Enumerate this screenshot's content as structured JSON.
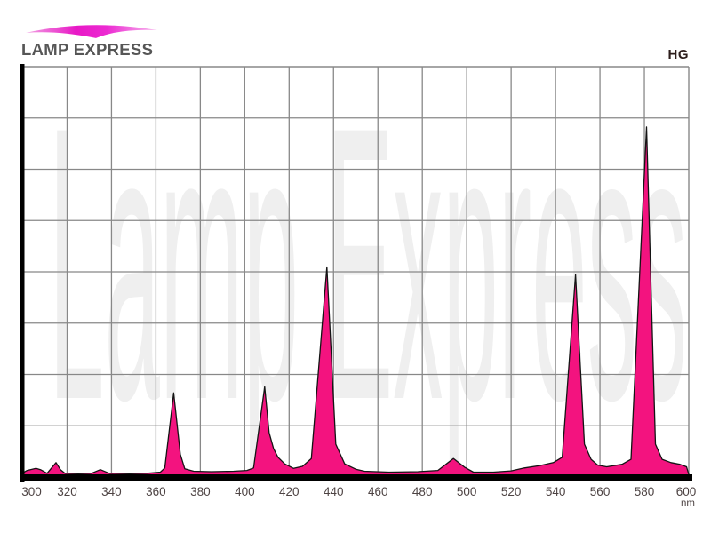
{
  "header": {
    "logo_text": "LAMP EXPRESS",
    "corner_label": "HG"
  },
  "watermark": "Lamp Express",
  "colors": {
    "background": "#FFFFFF",
    "spectrum_fill": "#F3137F",
    "spectrum_outline": "#141414",
    "grid": "#888888",
    "axis": "#000000",
    "tick_label": "#4D4343",
    "watermark": "#EFEFEF",
    "logo_text": "#565656",
    "corner_label": "#2D1E1C",
    "logo_swoosh_edge_left": "#F2A3E3",
    "logo_swoosh_mid": "#E818C6",
    "logo_swoosh_mid2": "#EC2BD2",
    "logo_swoosh_edge_right": "#F8BCEF"
  },
  "chart_data": {
    "type": "area",
    "series_label": "HG",
    "xlabel": "nm",
    "x_unit": "nm",
    "x_min": 300,
    "x_max": 600,
    "x_ticks": [
      300,
      320,
      340,
      360,
      380,
      400,
      420,
      440,
      460,
      480,
      500,
      520,
      540,
      560,
      580,
      600
    ],
    "y_axis": {
      "labels_visible": false,
      "rows": 8,
      "scale": "relative intensity 0-1"
    },
    "grid": true,
    "legend": "none",
    "peaks": [
      {
        "nm": 306,
        "intensity": 0.02
      },
      {
        "nm": 315,
        "intensity": 0.035
      },
      {
        "nm": 335,
        "intensity": 0.018
      },
      {
        "nm": 368,
        "intensity": 0.205
      },
      {
        "nm": 409,
        "intensity": 0.22
      },
      {
        "nm": 437,
        "intensity": 0.51
      },
      {
        "nm": 494,
        "intensity": 0.045
      },
      {
        "nm": 549,
        "intensity": 0.49
      },
      {
        "nm": 581,
        "intensity": 0.85
      }
    ],
    "points": [
      [
        300,
        0.01
      ],
      [
        302,
        0.016
      ],
      [
        306,
        0.021
      ],
      [
        308,
        0.018
      ],
      [
        311,
        0.009
      ],
      [
        315,
        0.035
      ],
      [
        317,
        0.018
      ],
      [
        319,
        0.009
      ],
      [
        325,
        0.008
      ],
      [
        331,
        0.009
      ],
      [
        335,
        0.018
      ],
      [
        339,
        0.009
      ],
      [
        348,
        0.008
      ],
      [
        356,
        0.009
      ],
      [
        362,
        0.012
      ],
      [
        364,
        0.022
      ],
      [
        368,
        0.205
      ],
      [
        371,
        0.055
      ],
      [
        373,
        0.02
      ],
      [
        377,
        0.014
      ],
      [
        385,
        0.013
      ],
      [
        395,
        0.014
      ],
      [
        401,
        0.016
      ],
      [
        404,
        0.022
      ],
      [
        409,
        0.22
      ],
      [
        411,
        0.108
      ],
      [
        413,
        0.069
      ],
      [
        415,
        0.048
      ],
      [
        418,
        0.032
      ],
      [
        422,
        0.021
      ],
      [
        426,
        0.026
      ],
      [
        430,
        0.045
      ],
      [
        437,
        0.512
      ],
      [
        441,
        0.08
      ],
      [
        445,
        0.032
      ],
      [
        450,
        0.019
      ],
      [
        454,
        0.014
      ],
      [
        465,
        0.012
      ],
      [
        478,
        0.013
      ],
      [
        487,
        0.016
      ],
      [
        494,
        0.045
      ],
      [
        499,
        0.024
      ],
      [
        503,
        0.012
      ],
      [
        512,
        0.012
      ],
      [
        520,
        0.015
      ],
      [
        526,
        0.022
      ],
      [
        533,
        0.028
      ],
      [
        539,
        0.035
      ],
      [
        543,
        0.048
      ],
      [
        549,
        0.493
      ],
      [
        553,
        0.08
      ],
      [
        556,
        0.043
      ],
      [
        559,
        0.029
      ],
      [
        563,
        0.025
      ],
      [
        570,
        0.031
      ],
      [
        574,
        0.043
      ],
      [
        581,
        0.853
      ],
      [
        585,
        0.08
      ],
      [
        588,
        0.043
      ],
      [
        592,
        0.035
      ],
      [
        596,
        0.031
      ],
      [
        599,
        0.025
      ],
      [
        600,
        0.006
      ]
    ]
  }
}
